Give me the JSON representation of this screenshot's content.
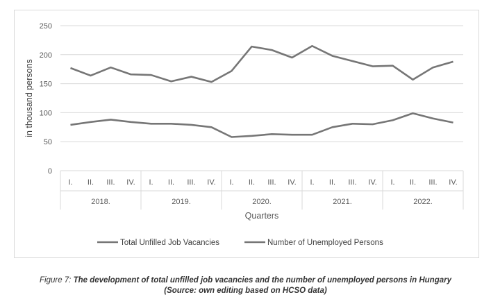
{
  "chart_data": {
    "type": "line",
    "ylabel": "in thousand persons",
    "xlabel": "Quarters",
    "ylim": [
      0,
      250
    ],
    "yticks": [
      0,
      50,
      100,
      150,
      200,
      250
    ],
    "grid": true,
    "legend_position": "bottom",
    "quarters": [
      "I.",
      "II.",
      "III.",
      "IV."
    ],
    "years": [
      "2018.",
      "2019.",
      "2020.",
      "2021.",
      "2022."
    ],
    "series": [
      {
        "name": "Total Unfilled Job Vacancies",
        "color": "#767676",
        "values": [
          79,
          84,
          88,
          84,
          81,
          81,
          79,
          75,
          58,
          60,
          63,
          62,
          62,
          75,
          81,
          80,
          87,
          99,
          90,
          83
        ]
      },
      {
        "name": "Number of Unemployed Persons",
        "color": "#767676",
        "values": [
          177,
          164,
          178,
          166,
          165,
          154,
          162,
          153,
          172,
          214,
          208,
          195,
          215,
          198,
          189,
          180,
          181,
          157,
          178,
          188
        ]
      }
    ]
  },
  "caption": {
    "prefix": "Figure 7: ",
    "line1": "The development of total unfilled job vacancies and the number of unemployed persons in Hungary",
    "line2": "(Source: own editing based on HCSO data)"
  }
}
